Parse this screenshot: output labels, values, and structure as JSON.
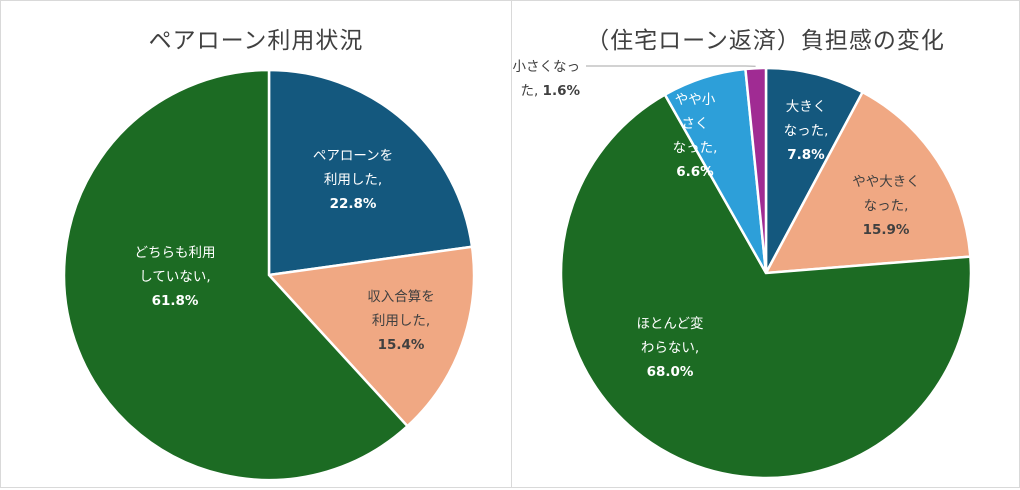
{
  "chart_data": [
    {
      "type": "pie",
      "title": "ペアローン利用状況",
      "slices": [
        {
          "lines": [
            "ペアローンを",
            "利用した,"
          ],
          "pct_label": "22.8%",
          "value": 22.8,
          "color": "#14587e",
          "text_color": "#ffffff"
        },
        {
          "lines": [
            "収入合算を",
            "利用した,"
          ],
          "pct_label": "15.4%",
          "value": 15.4,
          "color": "#f0a883",
          "text_color": "#404040"
        },
        {
          "lines": [
            "どちらも利用",
            "していない,"
          ],
          "pct_label": "61.8%",
          "value": 61.8,
          "color": "#1c6b23",
          "text_color": "#ffffff"
        }
      ]
    },
    {
      "type": "pie",
      "title": "（住宅ローン返済）負担感の変化",
      "slices": [
        {
          "lines": [
            "大きく",
            "なった,"
          ],
          "pct_label": "7.8%",
          "value": 7.8,
          "color": "#14587e",
          "text_color": "#ffffff"
        },
        {
          "lines": [
            "やや大きく",
            "なった,"
          ],
          "pct_label": "15.9%",
          "value": 15.9,
          "color": "#f0a883",
          "text_color": "#404040"
        },
        {
          "lines": [
            "ほとんど変",
            "わらない,"
          ],
          "pct_label": "68.0%",
          "value": 68.0,
          "color": "#1c6b23",
          "text_color": "#ffffff"
        },
        {
          "lines": [
            "やや小",
            "さく",
            "なった,"
          ],
          "pct_label": "6.6%",
          "value": 6.6,
          "color": "#2d9fd9",
          "text_color": "#ffffff"
        },
        {
          "lines": [
            "小さくなっ",
            "た,"
          ],
          "pct_label": "1.6%",
          "value": 1.6,
          "color": "#a02b93",
          "text_color": "#404040",
          "callout": true
        }
      ]
    }
  ]
}
